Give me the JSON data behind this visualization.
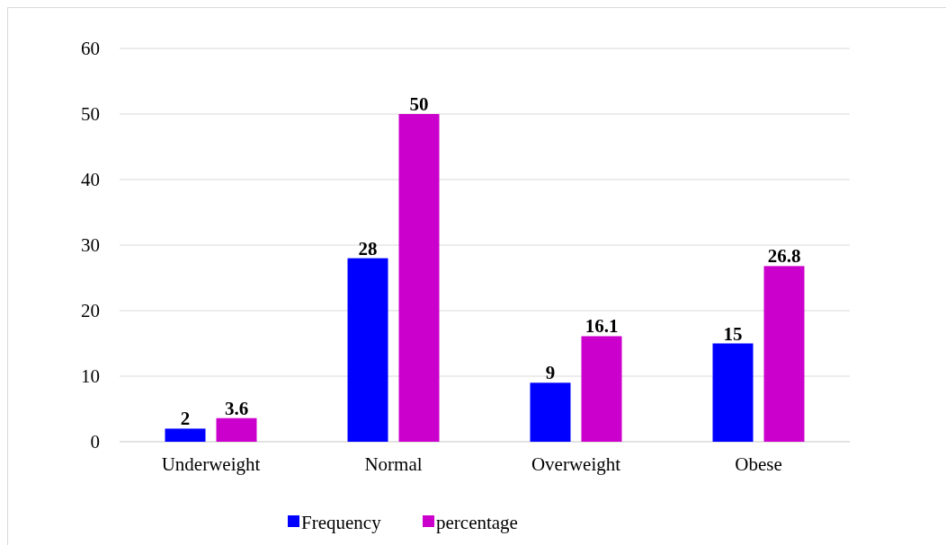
{
  "chart_data": {
    "type": "bar",
    "categories": [
      "Underweight",
      "Normal",
      "Overweight",
      "Obese"
    ],
    "series": [
      {
        "name": "Frequency",
        "color": "#0000ff",
        "values": [
          2,
          28,
          9,
          15
        ]
      },
      {
        "name": "percentage",
        "color": "#cc00cc",
        "values": [
          3.6,
          50,
          16.1,
          26.8
        ]
      }
    ],
    "ylim": [
      0,
      60
    ],
    "yticks": [
      0,
      10,
      20,
      30,
      40,
      50,
      60
    ],
    "grid": "y",
    "legend": "bottom",
    "data_labels": true
  }
}
